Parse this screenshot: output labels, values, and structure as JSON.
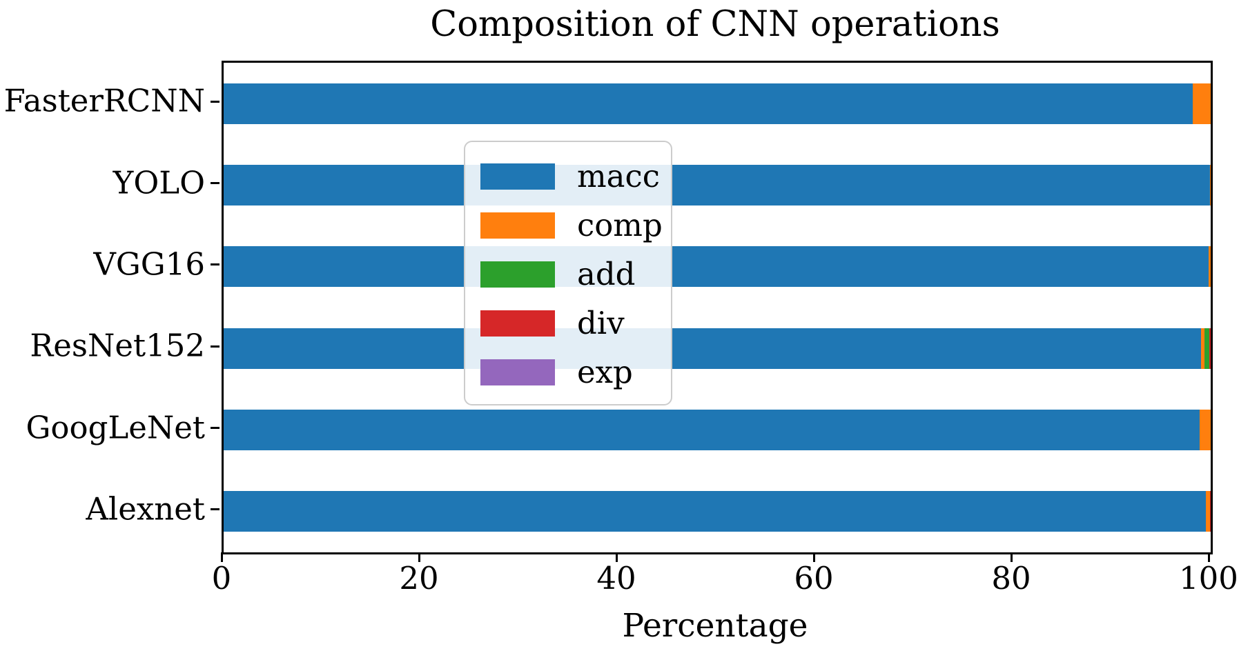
{
  "figure": {
    "title": "Composition of CNN operations",
    "xlabel": "Percentage"
  },
  "chart_data": {
    "type": "bar",
    "orientation": "horizontal",
    "stacked": true,
    "title": "Composition of CNN operations",
    "xlabel": "Percentage",
    "ylabel": "",
    "xlim": [
      0,
      100
    ],
    "xticks": [
      "0",
      "20",
      "40",
      "60",
      "80",
      "100"
    ],
    "grid": false,
    "legend_position": "upper-left",
    "categories_top_to_bottom": [
      "FasterRCNN",
      "YOLO",
      "VGG16",
      "ResNet152",
      "GoogLeNet",
      "Alexnet"
    ],
    "series": [
      {
        "name": "macc",
        "color": "#1f77b4",
        "values": [
          98.2,
          99.9,
          99.8,
          99.0,
          98.9,
          99.5
        ]
      },
      {
        "name": "comp",
        "color": "#ff7f0e",
        "values": [
          1.8,
          0.1,
          0.2,
          0.4,
          1.1,
          0.4
        ]
      },
      {
        "name": "add",
        "color": "#2ca02c",
        "values": [
          0,
          0,
          0,
          0.45,
          0,
          0
        ]
      },
      {
        "name": "div",
        "color": "#d62728",
        "values": [
          0,
          0,
          0,
          0.15,
          0,
          0.1
        ]
      },
      {
        "name": "exp",
        "color": "#9467bd",
        "values": [
          0,
          0,
          0,
          0,
          0,
          0
        ]
      }
    ]
  }
}
